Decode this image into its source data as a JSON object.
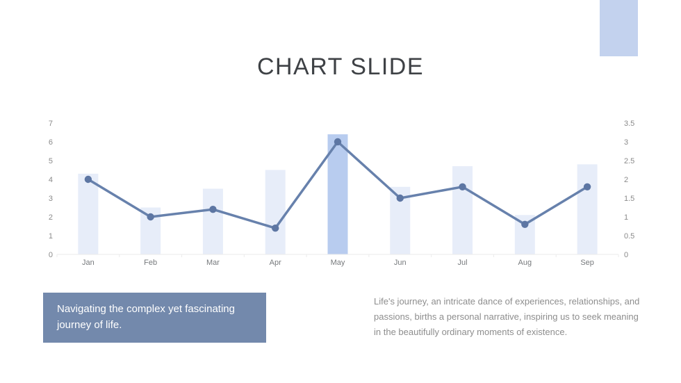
{
  "slide": {
    "title": "CHART SLIDE",
    "accent_color": "#c3d2ee",
    "title_color": "#3e4145"
  },
  "chart_data": {
    "type": "combo",
    "categories": [
      "Jan",
      "Feb",
      "Mar",
      "Apr",
      "May",
      "Jun",
      "Jul",
      "Aug",
      "Sep"
    ],
    "series": [
      {
        "name": "bars",
        "type": "bar",
        "axis": "left",
        "values": [
          4.3,
          2.5,
          3.5,
          4.5,
          6.4,
          3.6,
          4.7,
          2.1,
          4.8
        ]
      },
      {
        "name": "line",
        "type": "line",
        "axis": "right",
        "values": [
          2.0,
          1.0,
          1.2,
          0.7,
          3.0,
          1.5,
          1.8,
          0.8,
          1.8
        ]
      }
    ],
    "left_axis": {
      "min": 0,
      "max": 7,
      "ticks": [
        0,
        1,
        2,
        3,
        4,
        5,
        6,
        7
      ]
    },
    "right_axis": {
      "min": 0,
      "max": 3.5,
      "ticks": [
        0,
        0.5,
        1,
        1.5,
        2,
        2.5,
        3,
        3.5
      ]
    },
    "highlight_category": "May",
    "grid": "off",
    "legend": "none",
    "title": "",
    "xlabel": "",
    "ylabel": "",
    "colors": {
      "bar": "#e7edf9",
      "bar_highlight": "#b8ccef",
      "line": "#6781ac",
      "dot": "#5d76a3",
      "axis_number": "#8a8a8a",
      "axis_month": "#76797c",
      "axis_line": "#ebebeb"
    }
  },
  "callout": {
    "text": "Navigating the complex yet fascinating journey of life.",
    "bg": "#7389ac",
    "fg": "#ffffff"
  },
  "paragraph": {
    "text": "Life's journey, an intricate dance of experiences, relationships, and passions, births a personal narrative, inspiring us to seek meaning in the beautifully ordinary moments of existence.",
    "color": "#8d8d8d"
  }
}
